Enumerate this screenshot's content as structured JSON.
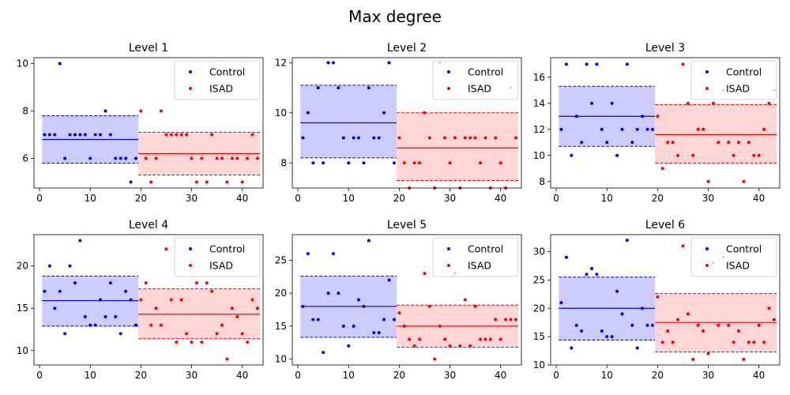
{
  "suptitle": "Max degree",
  "colors": {
    "control": "#0000ff",
    "isad": "#ff0000",
    "control_band": "#ccccff",
    "isad_band": "#ffd6d6"
  },
  "chart_data": [
    {
      "type": "scatter",
      "title": "Level 1",
      "xlim": [
        -1.1,
        44.1
      ],
      "ylim": [
        4.75,
        10.25
      ],
      "xticks": [
        0,
        10,
        20,
        30,
        40
      ],
      "yticks": [
        6,
        8,
        10
      ],
      "legend": "top-right",
      "series": [
        {
          "name": "Control",
          "x": [
            1,
            2,
            3,
            4,
            5,
            6,
            7,
            8,
            9,
            10,
            11,
            12,
            13,
            14,
            15,
            16,
            17,
            18,
            19
          ],
          "y": [
            7,
            7,
            7,
            10,
            6,
            7,
            7,
            7,
            7,
            6,
            7,
            7,
            8,
            7,
            6,
            6,
            6,
            5,
            6
          ],
          "mean": 6.8,
          "band": [
            5.8,
            7.8
          ]
        },
        {
          "name": "ISAD",
          "x": [
            20,
            21,
            22,
            23,
            24,
            25,
            26,
            27,
            28,
            29,
            30,
            31,
            32,
            33,
            34,
            35,
            36,
            37,
            38,
            39,
            40,
            41,
            42,
            43
          ],
          "y": [
            8,
            6,
            5,
            6,
            8,
            7,
            7,
            7,
            7,
            7,
            6,
            5,
            6,
            5,
            7,
            6,
            6,
            5,
            6,
            6,
            5,
            6,
            7,
            6
          ],
          "mean": 6.2,
          "band": [
            5.3,
            7.1
          ]
        }
      ]
    },
    {
      "type": "scatter",
      "title": "Level 2",
      "xlim": [
        -1.1,
        44.1
      ],
      "ylim": [
        7.0,
        12.2
      ],
      "xticks": [
        0,
        10,
        20,
        30,
        40
      ],
      "yticks": [
        8,
        10,
        12
      ],
      "legend": "top-right",
      "series": [
        {
          "name": "Control",
          "x": [
            1,
            2,
            3,
            4,
            5,
            6,
            7,
            8,
            9,
            10,
            11,
            12,
            13,
            14,
            15,
            16,
            17,
            18,
            19
          ],
          "y": [
            9,
            10,
            8,
            11,
            8,
            12,
            12,
            11,
            9,
            8,
            9,
            9,
            8,
            11,
            9,
            9,
            10,
            12,
            8
          ],
          "mean": 9.6,
          "band": [
            8.2,
            11.1
          ]
        },
        {
          "name": "ISAD",
          "x": [
            20,
            21,
            22,
            23,
            24,
            25,
            26,
            27,
            28,
            29,
            30,
            31,
            32,
            33,
            34,
            35,
            36,
            37,
            38,
            39,
            40,
            41,
            42,
            43
          ],
          "y": [
            9,
            8,
            7,
            8,
            8,
            10,
            9,
            7,
            12,
            9,
            8,
            9,
            7,
            9,
            9,
            9,
            8,
            9,
            7,
            9,
            8,
            7,
            11,
            9
          ],
          "mean": 8.6,
          "band": [
            7.3,
            10.0
          ]
        }
      ]
    },
    {
      "type": "scatter",
      "title": "Level 3",
      "xlim": [
        -1.1,
        44.1
      ],
      "ylim": [
        7.5,
        17.5
      ],
      "xticks": [
        0,
        10,
        20,
        30,
        40
      ],
      "yticks": [
        8,
        10,
        12,
        14,
        16
      ],
      "legend": "top-right",
      "series": [
        {
          "name": "Control",
          "x": [
            1,
            2,
            3,
            4,
            5,
            6,
            7,
            8,
            9,
            10,
            11,
            12,
            13,
            14,
            15,
            16,
            17,
            18,
            19
          ],
          "y": [
            12,
            17,
            10,
            13,
            11,
            17,
            14,
            17,
            12,
            11,
            14,
            10,
            12,
            17,
            11,
            12,
            13,
            12,
            12
          ],
          "mean": 13.0,
          "band": [
            10.7,
            15.3
          ]
        },
        {
          "name": "ISAD",
          "x": [
            20,
            21,
            22,
            23,
            24,
            25,
            26,
            27,
            28,
            29,
            30,
            31,
            32,
            33,
            34,
            35,
            36,
            37,
            38,
            39,
            40,
            41,
            42,
            43
          ],
          "y": [
            13,
            9,
            11,
            11,
            10,
            17,
            14,
            10,
            12,
            12,
            8,
            14,
            11,
            15,
            11,
            10,
            11,
            8,
            11,
            10,
            10,
            12,
            14,
            15
          ],
          "mean": 11.6,
          "band": [
            9.4,
            13.9
          ]
        }
      ]
    },
    {
      "type": "scatter",
      "title": "Level 4",
      "xlim": [
        -1.1,
        44.1
      ],
      "ylim": [
        8.3,
        23.7
      ],
      "xticks": [
        0,
        10,
        20,
        30,
        40
      ],
      "yticks": [
        10,
        15,
        20
      ],
      "legend": "top-right",
      "series": [
        {
          "name": "Control",
          "x": [
            1,
            2,
            3,
            4,
            5,
            6,
            7,
            8,
            9,
            10,
            11,
            12,
            13,
            14,
            15,
            16,
            17,
            18,
            19
          ],
          "y": [
            17,
            20,
            15,
            17,
            12,
            20,
            18,
            23,
            14,
            13,
            13,
            16,
            14,
            18,
            14,
            12,
            17,
            16,
            13
          ],
          "mean": 15.9,
          "band": [
            12.9,
            18.8
          ]
        },
        {
          "name": "ISAD",
          "x": [
            20,
            21,
            22,
            23,
            24,
            25,
            26,
            27,
            28,
            29,
            30,
            31,
            32,
            33,
            34,
            35,
            36,
            37,
            38,
            39,
            40,
            41,
            42,
            43
          ],
          "y": [
            16,
            18,
            13,
            15,
            13,
            22,
            16,
            11,
            16,
            12,
            11,
            18,
            11,
            18,
            17,
            12,
            13,
            9,
            15,
            14,
            12,
            11,
            16,
            15
          ],
          "mean": 14.3,
          "band": [
            11.4,
            17.3
          ]
        }
      ]
    },
    {
      "type": "scatter",
      "title": "Level 5",
      "xlim": [
        -1.1,
        44.1
      ],
      "ylim": [
        9.1,
        28.9
      ],
      "xticks": [
        0,
        10,
        20,
        30,
        40
      ],
      "yticks": [
        10,
        15,
        20,
        25
      ],
      "legend": "top-right",
      "series": [
        {
          "name": "Control",
          "x": [
            1,
            2,
            3,
            4,
            5,
            6,
            7,
            8,
            9,
            10,
            11,
            12,
            13,
            14,
            15,
            16,
            17,
            18,
            19
          ],
          "y": [
            18,
            26,
            16,
            16,
            11,
            20,
            26,
            20,
            15,
            12,
            15,
            19,
            18,
            28,
            14,
            14,
            16,
            22,
            16
          ],
          "mean": 18.0,
          "band": [
            13.3,
            22.6
          ]
        },
        {
          "name": "ISAD",
          "x": [
            20,
            21,
            22,
            23,
            24,
            25,
            26,
            27,
            28,
            29,
            30,
            31,
            32,
            33,
            34,
            35,
            36,
            37,
            38,
            39,
            40,
            41,
            42,
            43
          ],
          "y": [
            17,
            15,
            13,
            12,
            13,
            23,
            18,
            10,
            15,
            13,
            12,
            23,
            12,
            19,
            12,
            18,
            13,
            13,
            13,
            16,
            13,
            16,
            16,
            16
          ],
          "mean": 15.0,
          "band": [
            11.8,
            18.2
          ]
        }
      ]
    },
    {
      "type": "scatter",
      "title": "Level 6",
      "xlim": [
        -1.1,
        44.1
      ],
      "ylim": [
        10.0,
        33.0
      ],
      "xticks": [
        0,
        10,
        20,
        30,
        40
      ],
      "yticks": [
        10,
        15,
        20,
        25,
        30
      ],
      "legend": "top-right",
      "series": [
        {
          "name": "Control",
          "x": [
            1,
            2,
            3,
            4,
            5,
            6,
            7,
            8,
            9,
            10,
            11,
            12,
            13,
            14,
            15,
            16,
            17,
            18,
            19
          ],
          "y": [
            21,
            29,
            13,
            17,
            16,
            26,
            27,
            26,
            16,
            15,
            15,
            23,
            19,
            32,
            17,
            13,
            20,
            17,
            17
          ],
          "mean": 20.0,
          "band": [
            14.4,
            25.5
          ]
        },
        {
          "name": "ISAD",
          "x": [
            20,
            21,
            22,
            23,
            24,
            25,
            26,
            27,
            28,
            29,
            30,
            31,
            32,
            33,
            34,
            35,
            36,
            37,
            38,
            39,
            40,
            41,
            42,
            43
          ],
          "y": [
            22,
            14,
            16,
            14,
            18,
            31,
            19,
            11,
            17,
            16,
            12,
            28,
            17,
            29,
            17,
            14,
            16,
            11,
            14,
            14,
            17,
            14,
            20,
            18
          ],
          "mean": 17.5,
          "band": [
            12.3,
            22.6
          ]
        }
      ]
    }
  ]
}
